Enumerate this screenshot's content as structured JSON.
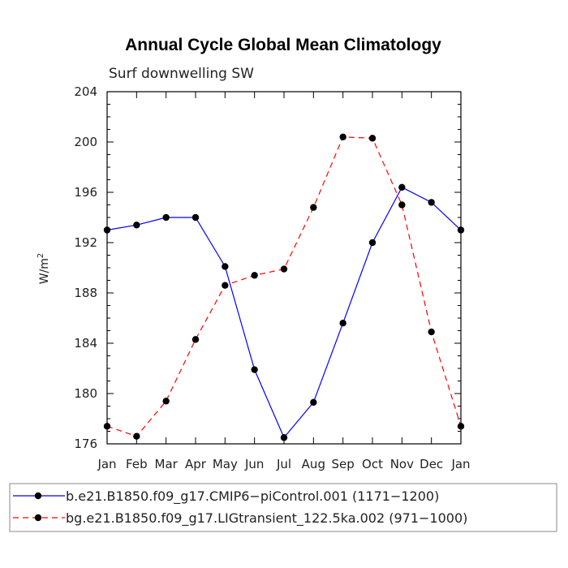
{
  "chart_data": {
    "type": "line",
    "title": "Annual Cycle Global Mean Climatology",
    "subtitle": "Surf downwelling SW",
    "ylabel_base": "W/m",
    "ylabel_exp": "2",
    "xlabel": "",
    "categories": [
      "Jan",
      "Feb",
      "Mar",
      "Apr",
      "May",
      "Jun",
      "Jul",
      "Aug",
      "Sep",
      "Oct",
      "Nov",
      "Dec",
      "Jan"
    ],
    "ylim": [
      176,
      204
    ],
    "yticks": [
      176,
      180,
      184,
      188,
      192,
      196,
      200,
      204
    ],
    "series": [
      {
        "name": "b.e21.B1850.f09_g17.CMIP6−piControl.001 (1171−1200)",
        "color": "#0000ff",
        "dash": "solid",
        "values": [
          193.0,
          193.4,
          194.0,
          194.0,
          190.1,
          181.9,
          176.5,
          179.3,
          185.6,
          192.0,
          196.4,
          195.2,
          193.0
        ]
      },
      {
        "name": "bg.e21.B1850.f09_g17.LIGtransient_122.5ka.002 (971−1000)",
        "color": "#ff0000",
        "dash": "dashed",
        "values": [
          177.4,
          176.6,
          179.4,
          184.3,
          188.6,
          189.4,
          189.9,
          194.8,
          200.4,
          200.3,
          195.0,
          184.9,
          177.4
        ]
      }
    ],
    "grid": false,
    "legend_position": "bottom"
  }
}
